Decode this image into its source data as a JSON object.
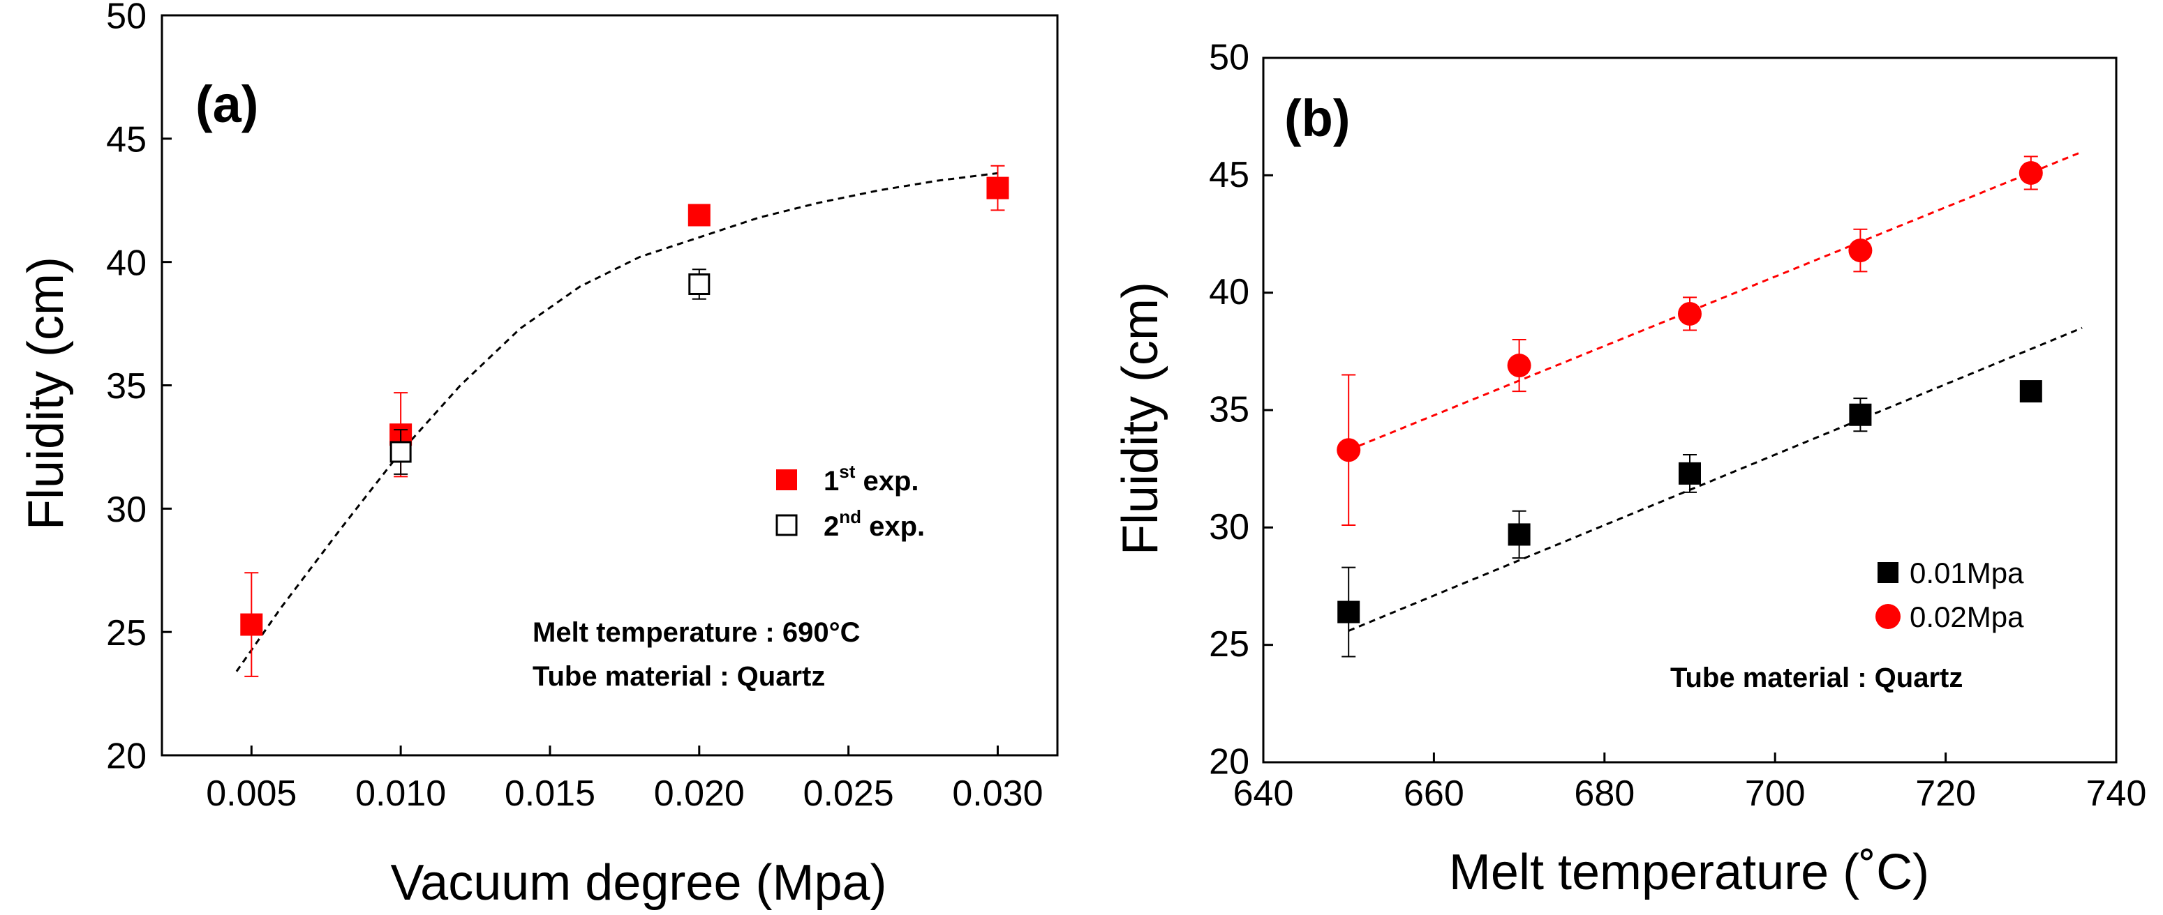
{
  "chart_data": [
    {
      "type": "scatter",
      "panel_label": "(a)",
      "xlabel": "Vacuum degree (Mpa)",
      "ylabel": "Fluidity (cm)",
      "xlim": [
        0.002,
        0.032
      ],
      "ylim": [
        20,
        50
      ],
      "xticks": [
        "0.005",
        "0.010",
        "0.015",
        "0.020",
        "0.025",
        "0.030"
      ],
      "yticks": [
        "20",
        "25",
        "30",
        "35",
        "40",
        "45",
        "50"
      ],
      "series": [
        {
          "name": "1st exp.",
          "legend_base": "1",
          "legend_sup": "st",
          "legend_rest": " exp.",
          "marker": "filled-square",
          "color": "#ff0000",
          "x": [
            0.005,
            0.01,
            0.02,
            0.03
          ],
          "y": [
            25.3,
            33.0,
            41.9,
            43.0
          ],
          "err": [
            2.1,
            1.7,
            0.4,
            0.9
          ]
        },
        {
          "name": "2nd exp.",
          "legend_base": "2",
          "legend_sup": "nd",
          "legend_rest": " exp.",
          "marker": "open-square",
          "color": "#000000",
          "x": [
            0.01,
            0.02
          ],
          "y": [
            32.3,
            39.1
          ],
          "err": [
            0.9,
            0.6
          ]
        }
      ],
      "fit": {
        "style": "dashed",
        "color": "#000000",
        "x": [
          0.0045,
          0.006,
          0.008,
          0.01,
          0.012,
          0.014,
          0.016,
          0.018,
          0.02,
          0.022,
          0.024,
          0.026,
          0.028,
          0.03
        ],
        "y": [
          23.4,
          26.0,
          29.2,
          32.3,
          35.0,
          37.3,
          39.0,
          40.2,
          41.0,
          41.8,
          42.4,
          42.9,
          43.3,
          43.6
        ]
      },
      "annotations": [
        "Melt temperature : 690°C",
        "Tube material : Quartz"
      ],
      "legend_position": "right-middle"
    },
    {
      "type": "scatter",
      "panel_label": "(b)",
      "xlabel": "Melt temperature (˚C)",
      "ylabel": "Fluidity (cm)",
      "xlim": [
        640,
        740
      ],
      "ylim": [
        20,
        50
      ],
      "xticks": [
        "640",
        "660",
        "680",
        "700",
        "720",
        "740"
      ],
      "yticks": [
        "20",
        "25",
        "30",
        "35",
        "40",
        "45",
        "50"
      ],
      "series": [
        {
          "name": "0.01Mpa",
          "marker": "filled-square",
          "color": "#000000",
          "x": [
            650,
            670,
            690,
            710,
            730
          ],
          "y": [
            26.4,
            29.7,
            32.3,
            34.8,
            35.8
          ],
          "err": [
            1.9,
            1.0,
            0.8,
            0.7,
            0.3
          ],
          "fit": {
            "x": [
              650,
              736
            ],
            "y": [
              25.6,
              38.5
            ],
            "color": "#000000"
          }
        },
        {
          "name": "0.02Mpa",
          "marker": "filled-circle",
          "color": "#ff0000",
          "x": [
            650,
            670,
            690,
            710,
            730
          ],
          "y": [
            33.3,
            36.9,
            39.1,
            41.8,
            45.1
          ],
          "err": [
            3.2,
            1.1,
            0.7,
            0.9,
            0.7
          ],
          "fit": {
            "x": [
              650,
              736
            ],
            "y": [
              33.3,
              46.0
            ],
            "color": "#ff0000"
          }
        }
      ],
      "annotations": [
        "Tube material : Quartz"
      ],
      "legend_position": "right-lower"
    }
  ]
}
